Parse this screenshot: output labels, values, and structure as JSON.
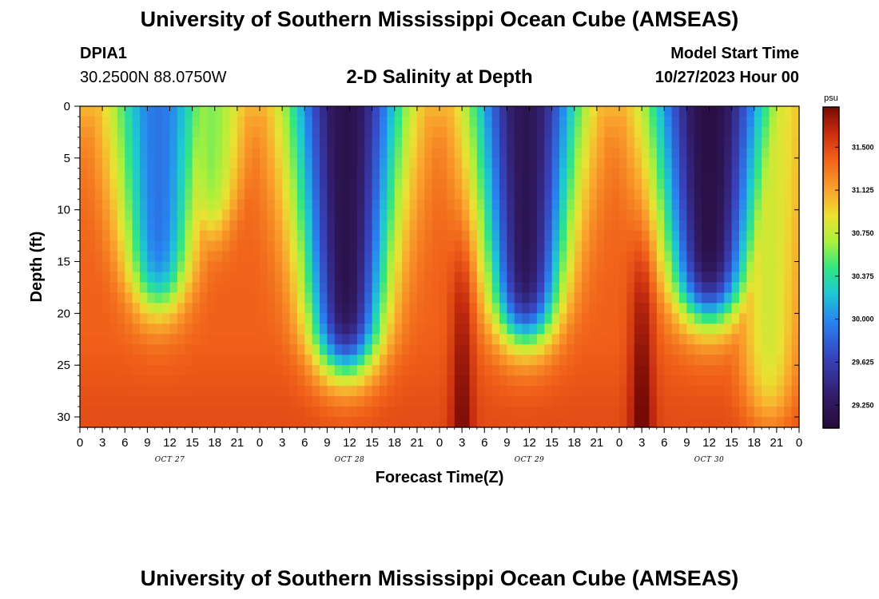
{
  "header": {
    "title": "University of Southern Mississippi Ocean Cube (AMSEAS)",
    "station_id": "DPIA1",
    "station_coords": "30.2500N  88.0750W",
    "plot_title": "2-D Salinity at Depth",
    "start_label": "Model Start Time",
    "start_value": "10/27/2023 Hour 00"
  },
  "footer": {
    "title": "University of Southern Mississippi Ocean Cube (AMSEAS)"
  },
  "chart_data": {
    "type": "heatmap",
    "title": "2-D Salinity at Depth",
    "xlabel": "Forecast Time(Z)",
    "ylabel": "Depth (ft)",
    "xlim": [
      0,
      96
    ],
    "ylim": [
      31,
      0
    ],
    "x_ticks": [
      0,
      3,
      6,
      9,
      12,
      15,
      18,
      21,
      24,
      27,
      30,
      33,
      36,
      39,
      42,
      45,
      48,
      51,
      54,
      57,
      60,
      63,
      66,
      69,
      72,
      75,
      78,
      81,
      84,
      87,
      90,
      93,
      96
    ],
    "x_tick_labels": [
      "0",
      "3",
      "6",
      "9",
      "12",
      "15",
      "18",
      "21",
      "0",
      "3",
      "6",
      "9",
      "12",
      "15",
      "18",
      "21",
      "0",
      "3",
      "6",
      "9",
      "12",
      "15",
      "18",
      "21",
      "0",
      "3",
      "6",
      "9",
      "12",
      "15",
      "18",
      "21",
      "0"
    ],
    "y_ticks": [
      0,
      5,
      10,
      15,
      20,
      25,
      30
    ],
    "y_tick_labels": [
      "0",
      "5",
      "10",
      "15",
      "20",
      "25",
      "30"
    ],
    "day_labels": [
      {
        "label": "OCT 27",
        "hour": 12
      },
      {
        "label": "OCT 28",
        "hour": 36
      },
      {
        "label": "OCT 29",
        "hour": 60
      },
      {
        "label": "OCT 30",
        "hour": 84
      }
    ],
    "colorbar": {
      "unit": "psu",
      "range": [
        29.05,
        31.85
      ],
      "ticks": [
        29.25,
        29.625,
        30.0,
        30.375,
        30.75,
        31.125,
        31.5
      ],
      "tick_labels": [
        "29.250",
        "29.625",
        "30.000",
        "30.375",
        "30.750",
        "31.125",
        "31.500"
      ]
    },
    "field_description": {
      "background_salinity": 31.4,
      "surface_value": 30.7,
      "fresh_events": [
        {
          "center_hour": 10.5,
          "width_hours": 4,
          "max_depth_ft": 19,
          "min_salinity": 29.9
        },
        {
          "center_hour": 17.5,
          "width_hours": 3,
          "max_depth_ft": 12,
          "min_salinity": 30.6
        },
        {
          "center_hour": 35.5,
          "width_hours": 4.6,
          "max_depth_ft": 25,
          "min_salinity": 29.15
        },
        {
          "center_hour": 59.5,
          "width_hours": 4.4,
          "max_depth_ft": 22,
          "min_salinity": 29.2
        },
        {
          "center_hour": 84.0,
          "width_hours": 4.8,
          "max_depth_ft": 20,
          "min_salinity": 29.1
        },
        {
          "center_hour": 92.0,
          "width_hours": 3.5,
          "max_depth_ft": 30,
          "min_salinity": 30.8
        }
      ],
      "salty_cores": [
        {
          "center_hour": 51,
          "width_hours": 1.5,
          "value": 31.85
        },
        {
          "center_hour": 75,
          "width_hours": 1.6,
          "value": 31.9
        }
      ]
    }
  }
}
